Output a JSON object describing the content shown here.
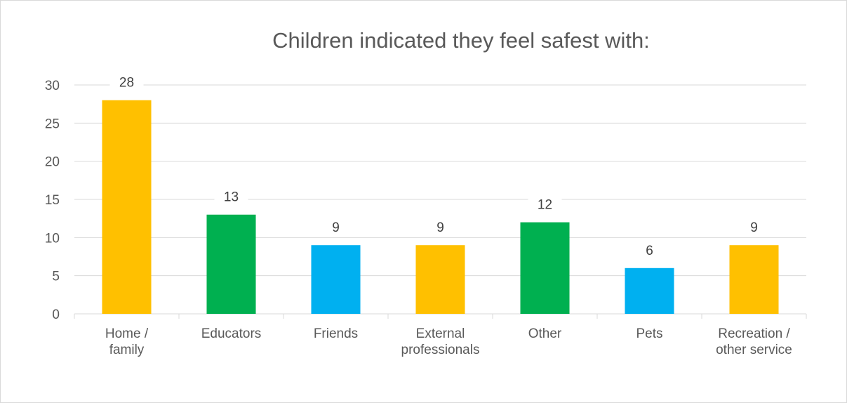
{
  "chart_data": {
    "type": "bar",
    "title": "Children indicated they feel safest with:",
    "xlabel": "",
    "ylabel": "",
    "categories": [
      [
        "Home /",
        "family"
      ],
      [
        "Educators"
      ],
      [
        "Friends"
      ],
      [
        "External",
        "professionals"
      ],
      [
        "Other"
      ],
      [
        "Pets"
      ],
      [
        "Recreation /",
        "other service"
      ]
    ],
    "values": [
      28,
      13,
      9,
      9,
      12,
      6,
      9
    ],
    "bar_colors": [
      "#FFC000",
      "#00B050",
      "#00B0F0",
      "#FFC000",
      "#00B050",
      "#00B0F0",
      "#FFC000"
    ],
    "ylim": [
      0,
      30
    ],
    "yticks": [
      0,
      5,
      10,
      15,
      20,
      25,
      30
    ],
    "grid": true,
    "legend": "none",
    "gridline_color": "#d9d9d9",
    "text_color": "#595959"
  }
}
